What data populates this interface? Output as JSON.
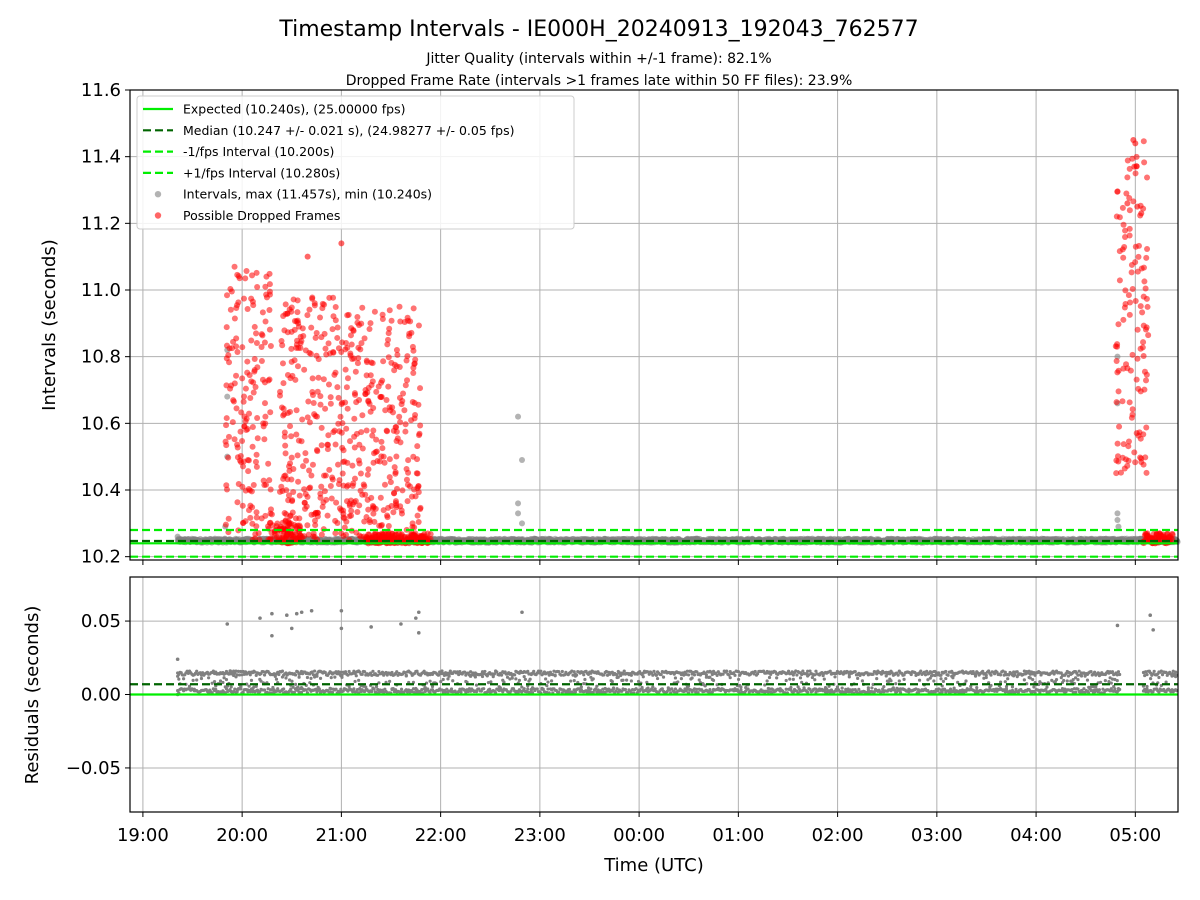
{
  "chart_data": {
    "type": "scatter",
    "title": "Timestamp Intervals - IE000H_20240913_192043_762577",
    "subtitle_1": "Jitter Quality (intervals within +/-1 frame): 82.1%",
    "subtitle_2": "Dropped Frame Rate (intervals >1 frames late within 50 FF files): 23.9%",
    "xlabel": "Time (UTC)",
    "x_tick_labels": [
      "19:00",
      "20:00",
      "21:00",
      "22:00",
      "23:00",
      "00:00",
      "01:00",
      "02:00",
      "03:00",
      "04:00",
      "05:00"
    ],
    "x_range_hours": [
      18.87,
      29.43
    ],
    "grid": true,
    "top_panel": {
      "ylabel": "Intervals (seconds)",
      "ylim": [
        10.19,
        11.6
      ],
      "y_ticks": [
        10.2,
        10.4,
        10.6,
        10.8,
        11.0,
        11.2,
        11.4,
        11.6
      ],
      "y_tick_labels": [
        "10.2",
        "10.4",
        "10.6",
        "10.8",
        "11.0",
        "11.2",
        "11.4",
        "11.6"
      ],
      "legend_position": "upper-left",
      "reference_lines": [
        {
          "name": "Expected (10.240s), (25.00000 fps)",
          "value": 10.24,
          "color": "#00ee00",
          "style": "solid"
        },
        {
          "name": "Median (10.247 +/- 0.021 s), (24.98277 +/- 0.05 fps)",
          "value": 10.247,
          "color": "#006400",
          "style": "dashed"
        },
        {
          "name": "-1/fps Interval (10.200s)",
          "value": 10.2,
          "color": "#00ee00",
          "style": "dashed"
        },
        {
          "name": "+1/fps Interval (10.280s)",
          "value": 10.28,
          "color": "#00ee00",
          "style": "dashed"
        }
      ],
      "series": [
        {
          "name": "Intervals, max (11.457s), min (10.240s)",
          "color": "#808080",
          "baseline_range_hours": [
            19.35,
            29.43
          ],
          "baseline_value": 10.248,
          "points": [
            [
              19.35,
              10.26
            ],
            [
              19.85,
              10.82
            ],
            [
              19.85,
              10.68
            ],
            [
              19.85,
              10.5
            ],
            [
              19.83,
              10.29
            ],
            [
              22.78,
              10.62
            ],
            [
              22.78,
              10.36
            ],
            [
              22.78,
              10.33
            ],
            [
              22.82,
              10.49
            ],
            [
              22.82,
              10.3
            ],
            [
              28.82,
              10.8
            ],
            [
              28.82,
              10.66
            ],
            [
              28.82,
              10.33
            ],
            [
              28.82,
              10.31
            ],
            [
              28.83,
              10.29
            ]
          ]
        },
        {
          "name": "Possible Dropped Frames",
          "color": "#ff0000",
          "clusters": [
            {
              "x_range_hours": [
                19.83,
                20.3
              ],
              "y_range": [
                10.25,
                11.08
              ]
            },
            {
              "x_range_hours": [
                20.3,
                20.6
              ],
              "y_range": [
                10.24,
                10.3
              ]
            },
            {
              "x_range_hours": [
                20.38,
                21.0
              ],
              "y_range": [
                10.25,
                10.98
              ]
            },
            {
              "x_range_hours": [
                21.0,
                21.8
              ],
              "y_range": [
                10.25,
                10.95
              ]
            },
            {
              "x_range_hours": [
                21.25,
                21.9
              ],
              "y_range": [
                10.24,
                10.27
              ]
            },
            {
              "x_range_hours": [
                28.8,
                29.13
              ],
              "y_range": [
                10.45,
                11.46
              ]
            },
            {
              "x_range_hours": [
                29.08,
                29.38
              ],
              "y_range": [
                10.24,
                10.27
              ]
            }
          ],
          "points": [
            [
              20.66,
              11.1
            ],
            [
              21.0,
              11.14
            ],
            [
              28.98,
              11.45
            ],
            [
              29.0,
              11.44
            ],
            [
              28.92,
              11.26
            ],
            [
              28.99,
              11.37
            ],
            [
              29.02,
              11.25
            ],
            [
              29.06,
              11.23
            ]
          ]
        }
      ]
    },
    "bottom_panel": {
      "ylabel": "Residuals (seconds)",
      "ylim": [
        -0.08,
        0.08
      ],
      "y_ticks": [
        -0.05,
        0.0,
        0.05
      ],
      "y_tick_labels": [
        "−0.05",
        "0.00",
        "0.05"
      ],
      "reference_lines": [
        {
          "value": 0.0,
          "color": "#00ee00",
          "style": "solid"
        },
        {
          "value": 0.007,
          "color": "#006400",
          "style": "dashed"
        }
      ],
      "series": [
        {
          "name": "Residuals",
          "color": "#808080",
          "band_range_hours": [
            19.35,
            29.43
          ],
          "band_y_range": [
            0.0,
            0.016
          ],
          "gap_hours": [
            28.85,
            29.08
          ],
          "points": [
            [
              19.35,
              0.024
            ],
            [
              19.35,
              0.0
            ],
            [
              19.85,
              0.048
            ],
            [
              19.88,
              0.016
            ],
            [
              20.18,
              0.052
            ],
            [
              20.3,
              0.055
            ],
            [
              20.3,
              0.04
            ],
            [
              20.45,
              0.054
            ],
            [
              20.55,
              0.055
            ],
            [
              20.6,
              0.056
            ],
            [
              20.5,
              0.045
            ],
            [
              20.7,
              0.057
            ],
            [
              21.0,
              0.057
            ],
            [
              21.0,
              0.045
            ],
            [
              21.3,
              0.046
            ],
            [
              21.6,
              0.048
            ],
            [
              21.75,
              0.052
            ],
            [
              21.78,
              0.056
            ],
            [
              21.78,
              0.042
            ],
            [
              22.82,
              0.056
            ],
            [
              28.82,
              0.047
            ],
            [
              29.15,
              0.054
            ],
            [
              29.18,
              0.044
            ]
          ]
        }
      ]
    }
  }
}
